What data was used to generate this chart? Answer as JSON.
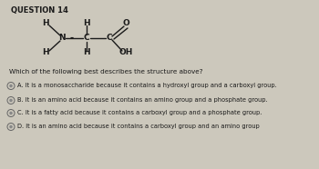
{
  "title": "QUESTION 14",
  "question": "Which of the following best describes the structure above?",
  "options": [
    "A. It is a monosaccharide because it contains a hydroxyl group and a carboxyl group.",
    "B. It is an amino acid because it contains an amino group and a phosphate group.",
    "C. It is a fatty acid because it contains a carboxyl group and a phosphate group.",
    "D. It is an amino acid because it contains a carboxyl group and an amino group"
  ],
  "bg_color": "#ccc8bc",
  "text_color": "#1a1a1a",
  "title_fontsize": 6.0,
  "option_fontsize": 4.8,
  "question_fontsize": 5.2,
  "chem_fontsize": 6.5
}
